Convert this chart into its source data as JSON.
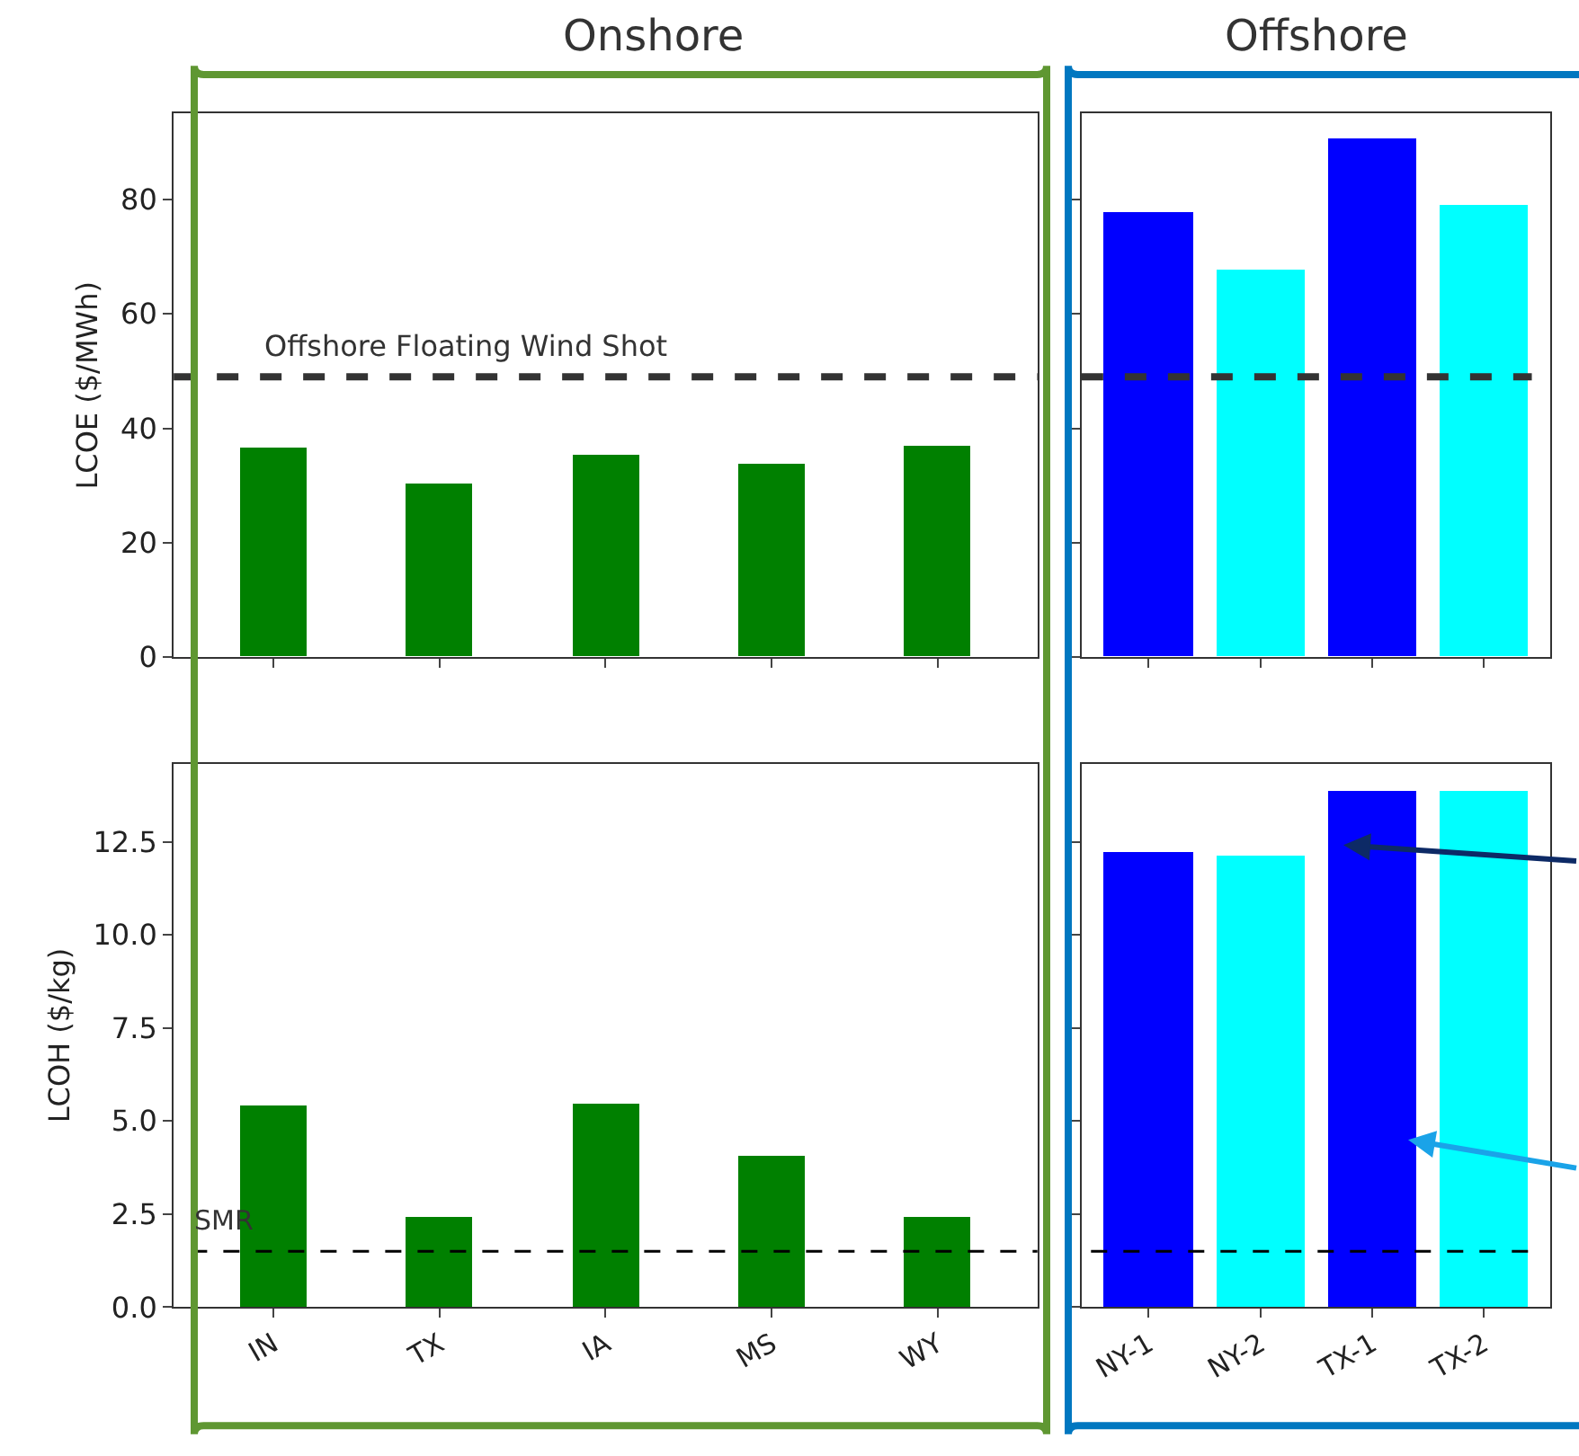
{
  "chart_data": [
    {
      "type": "bar",
      "title": "Onshore",
      "ylabel": "LCOE ($/MWh)",
      "categories": [
        null,
        null,
        null,
        null,
        null
      ],
      "values": [
        36.5,
        30.3,
        35.2,
        33.6,
        36.8
      ],
      "color": "#008000",
      "ylim": [
        0,
        95
      ],
      "yticks": [
        0,
        20,
        40,
        60,
        80
      ],
      "tick_labels": "y",
      "ref_lines": [
        {
          "axis": "y",
          "value": 49,
          "label": "Offshore Floating Wind Shot",
          "color": "#333333",
          "line_style": "dashed"
        }
      ]
    },
    {
      "type": "bar",
      "title": "Offshore",
      "categories": [
        null,
        null,
        null,
        null
      ],
      "values": [
        77.6,
        67.7,
        90.6,
        78.9
      ],
      "colors": [
        "#0000ff",
        "#00ffff",
        "#0000ff",
        "#00ffff"
      ],
      "ylim": [
        0,
        95
      ],
      "yticks": [
        0,
        20,
        40,
        60,
        80
      ],
      "tick_labels": false,
      "ref_lines": [
        {
          "axis": "y",
          "value": 49,
          "color": "#333333",
          "line_style": "dashed"
        }
      ]
    },
    {
      "type": "bar",
      "ylabel": "LCOH ($/kg)",
      "categories": [
        "IN",
        "TX",
        "IA",
        "MS",
        "WY"
      ],
      "values": [
        5.44,
        2.44,
        5.49,
        4.07,
        2.41
      ],
      "color": "#008000",
      "ylim": [
        0,
        14.6
      ],
      "yticks": [
        {
          "value": 0,
          "label": "0.0"
        },
        2.5,
        {
          "value": 5,
          "label": "5.0"
        },
        7.5,
        {
          "value": 10,
          "label": "10.0"
        },
        12.5
      ],
      "ref_lines": [
        {
          "axis": "y",
          "value": 1.5,
          "label": "SMR",
          "color": "#000000",
          "line_style": "dashed"
        }
      ]
    },
    {
      "type": "bar",
      "categories": [
        "NY-1",
        "NY-2",
        "TX-1",
        "TX-2"
      ],
      "values": [
        12.25,
        12.14,
        13.9,
        13.87
      ],
      "colors": [
        "#0000ff",
        "#00ffff",
        "#0000ff",
        "#00ffff"
      ],
      "ylim": [
        0,
        14.6
      ],
      "yticks": [
        0,
        2.5,
        5,
        7.5,
        10,
        12.5
      ],
      "tick_labels": "x",
      "ref_lines": [
        {
          "axis": "y",
          "value": 1.5,
          "color": "#000000",
          "line_style": "dashed"
        }
      ]
    }
  ]
}
